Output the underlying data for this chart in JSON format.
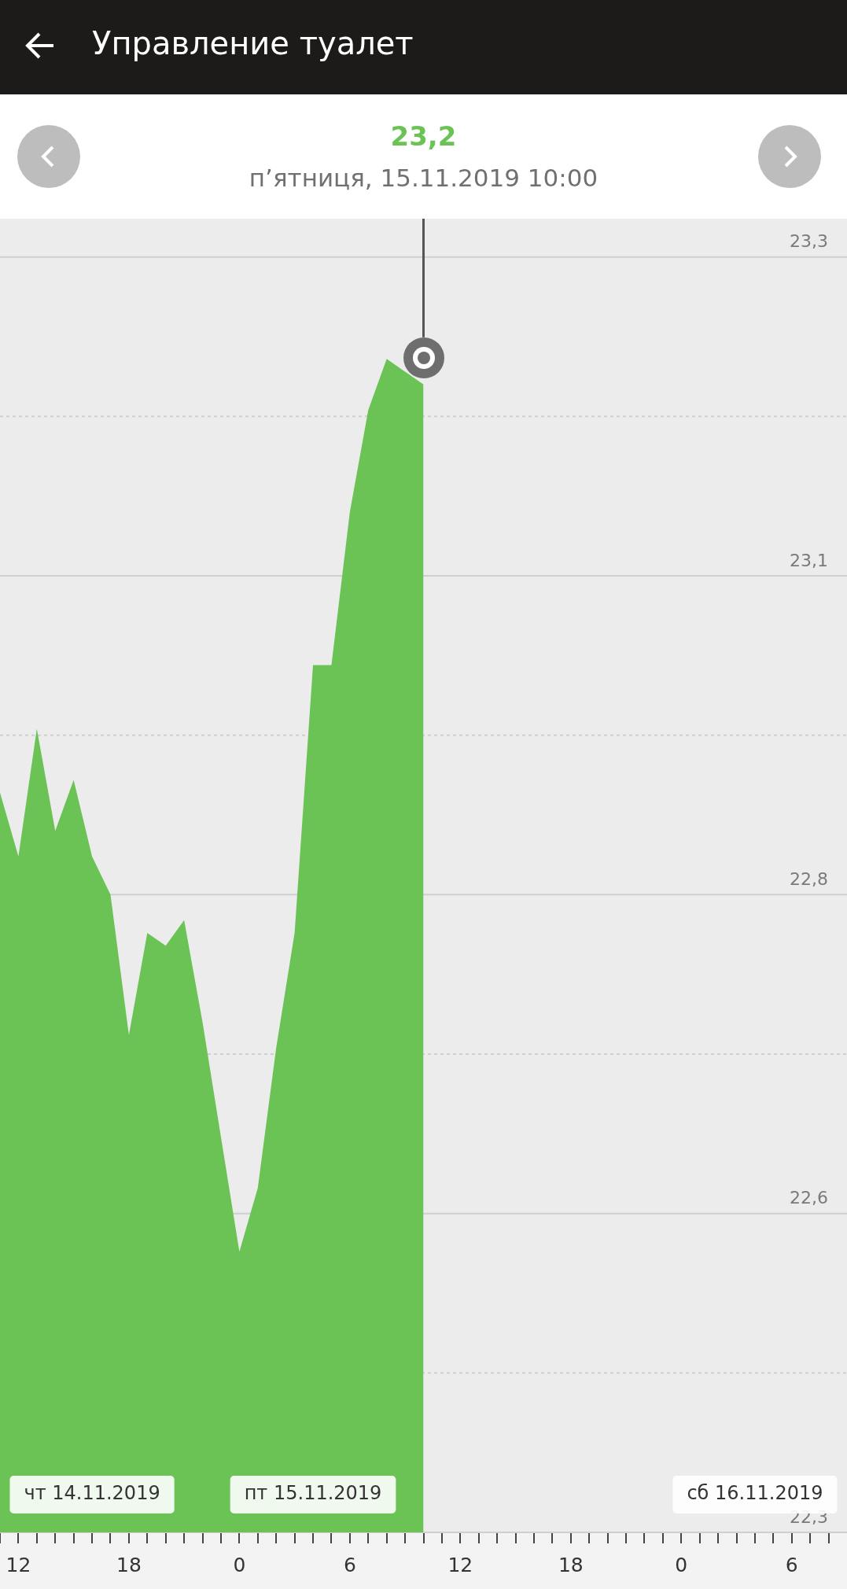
{
  "chart_data": {
    "type": "area",
    "title": "Управление туалет",
    "subtitle": "п’ятниця, 15.11.2019 10:00",
    "x": [
      "2019-11-14T11:00",
      "2019-11-14T12:00",
      "2019-11-14T13:00",
      "2019-11-14T14:00",
      "2019-11-14T15:00",
      "2019-11-14T16:00",
      "2019-11-14T17:00",
      "2019-11-14T18:00",
      "2019-11-14T19:00",
      "2019-11-14T20:00",
      "2019-11-14T21:00",
      "2019-11-14T22:00",
      "2019-11-14T23:00",
      "2019-11-15T00:00",
      "2019-11-15T01:00",
      "2019-11-15T02:00",
      "2019-11-15T03:00",
      "2019-11-15T04:00",
      "2019-11-15T05:00",
      "2019-11-15T06:00",
      "2019-11-15T07:00",
      "2019-11-15T08:00",
      "2019-11-15T09:00",
      "2019-11-15T10:00"
    ],
    "series": [
      {
        "color": "#6ac354",
        "values": [
          22.88,
          22.83,
          22.93,
          22.85,
          22.89,
          22.83,
          22.8,
          22.69,
          22.77,
          22.76,
          22.78,
          22.7,
          22.61,
          22.52,
          22.57,
          22.68,
          22.77,
          22.98,
          22.98,
          23.1,
          23.18,
          23.22,
          23.21,
          23.2
        ]
      }
    ],
    "xlim": [
      "2019-11-14T11:00",
      "2019-11-16T09:00"
    ],
    "xticks": [
      {
        "value": "2019-11-14T11:00",
        "label": null
      },
      {
        "value": "2019-11-14T12:00",
        "label": "12"
      },
      {
        "value": "2019-11-14T13:00",
        "label": null
      },
      {
        "value": "2019-11-14T14:00",
        "label": null
      },
      {
        "value": "2019-11-14T15:00",
        "label": null
      },
      {
        "value": "2019-11-14T16:00",
        "label": null
      },
      {
        "value": "2019-11-14T17:00",
        "label": null
      },
      {
        "value": "2019-11-14T18:00",
        "label": "18"
      },
      {
        "value": "2019-11-14T19:00",
        "label": null
      },
      {
        "value": "2019-11-14T20:00",
        "label": null
      },
      {
        "value": "2019-11-14T21:00",
        "label": null
      },
      {
        "value": "2019-11-14T22:00",
        "label": null
      },
      {
        "value": "2019-11-14T23:00",
        "label": null
      },
      {
        "value": "2019-11-15T00:00",
        "label": "0"
      },
      {
        "value": "2019-11-15T01:00",
        "label": null
      },
      {
        "value": "2019-11-15T02:00",
        "label": null
      },
      {
        "value": "2019-11-15T03:00",
        "label": null
      },
      {
        "value": "2019-11-15T04:00",
        "label": null
      },
      {
        "value": "2019-11-15T05:00",
        "label": null
      },
      {
        "value": "2019-11-15T06:00",
        "label": "6"
      },
      {
        "value": "2019-11-15T07:00",
        "label": null
      },
      {
        "value": "2019-11-15T08:00",
        "label": null
      },
      {
        "value": "2019-11-15T09:00",
        "label": null
      },
      {
        "value": "2019-11-15T10:00",
        "label": null
      },
      {
        "value": "2019-11-15T11:00",
        "label": null
      },
      {
        "value": "2019-11-15T12:00",
        "label": "12"
      },
      {
        "value": "2019-11-15T13:00",
        "label": null
      },
      {
        "value": "2019-11-15T14:00",
        "label": null
      },
      {
        "value": "2019-11-15T15:00",
        "label": null
      },
      {
        "value": "2019-11-15T16:00",
        "label": null
      },
      {
        "value": "2019-11-15T17:00",
        "label": null
      },
      {
        "value": "2019-11-15T18:00",
        "label": "18"
      },
      {
        "value": "2019-11-15T19:00",
        "label": null
      },
      {
        "value": "2019-11-15T20:00",
        "label": null
      },
      {
        "value": "2019-11-15T21:00",
        "label": null
      },
      {
        "value": "2019-11-15T22:00",
        "label": null
      },
      {
        "value": "2019-11-15T23:00",
        "label": null
      },
      {
        "value": "2019-11-16T00:00",
        "label": "0"
      },
      {
        "value": "2019-11-16T01:00",
        "label": null
      },
      {
        "value": "2019-11-16T02:00",
        "label": null
      },
      {
        "value": "2019-11-16T03:00",
        "label": null
      },
      {
        "value": "2019-11-16T04:00",
        "label": null
      },
      {
        "value": "2019-11-16T05:00",
        "label": null
      },
      {
        "value": "2019-11-16T06:00",
        "label": "6"
      },
      {
        "value": "2019-11-16T07:00",
        "label": null
      },
      {
        "value": "2019-11-16T08:00",
        "label": null
      }
    ],
    "ylim": [
      22.3,
      23.33
    ],
    "yticks": [
      {
        "value": 22.3,
        "label": "22,3"
      },
      {
        "value": 22.425,
        "label": null
      },
      {
        "value": 22.55,
        "label": "22,6"
      },
      {
        "value": 22.675,
        "label": null
      },
      {
        "value": 22.8,
        "label": "22,8"
      },
      {
        "value": 22.925,
        "label": null
      },
      {
        "value": 23.05,
        "label": "23,1"
      },
      {
        "value": 23.175,
        "label": null
      },
      {
        "value": 23.3,
        "label": "23,3"
      }
    ],
    "grid": "y",
    "legend": false,
    "ref_lines": [
      {
        "axis": "x",
        "value": "2019-11-15T10:00",
        "color": "#555555"
      }
    ],
    "x2lim": [
      "2019-11-14T11:00",
      "2019-11-16T09:00"
    ],
    "x2ticks": [
      {
        "value": "2019-11-14T16:00",
        "label": "чт 14.11.2019"
      },
      {
        "value": "2019-11-15T04:00",
        "label": "пт 15.11.2019"
      },
      {
        "value": "2019-11-16T04:00",
        "label": "сб 16.11.2019"
      }
    ],
    "annotations": [
      "23,2"
    ]
  }
}
